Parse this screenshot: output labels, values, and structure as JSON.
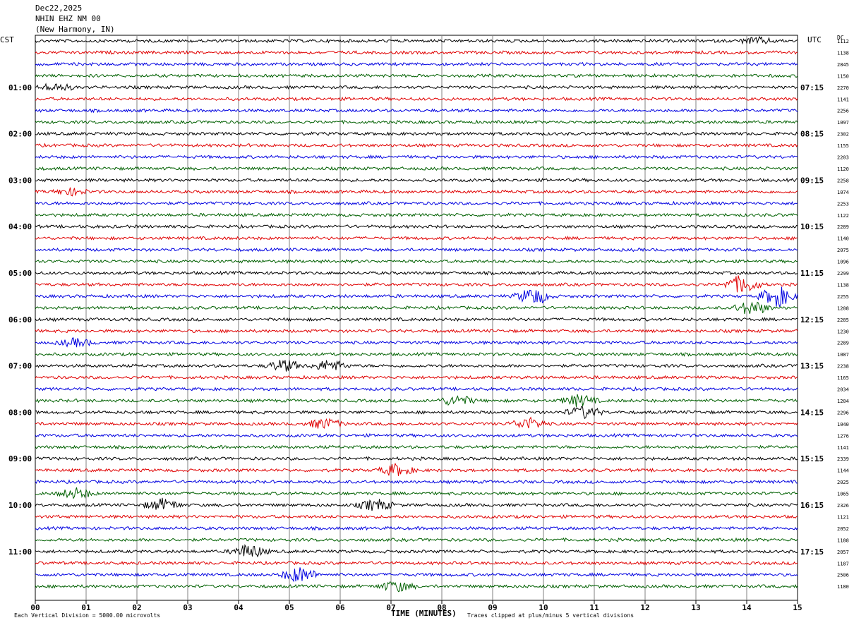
{
  "header": {
    "date": "Dec22,2025",
    "station": "NHIN EHZ NM 00",
    "location": "(New Harmony, IN)"
  },
  "left_zone": "CST",
  "right_zone": "UTC",
  "dc_header": "DC",
  "x_axis_title": "TIME (MINUTES)",
  "footer_left": "Each Vertical Division = 5000.00 microvolts",
  "footer_right": "Traces clipped at plus/minus 5 vertical divisions",
  "colors": {
    "trace_cycle": [
      "#000000",
      "#e00000",
      "#0000e0",
      "#006000"
    ],
    "grid": "#808080"
  },
  "chart_data": {
    "type": "line",
    "title": "NHIN EHZ NM 00 (New Harmony, IN)",
    "xlabel": "TIME (MINUTES)",
    "xlim": [
      0,
      15
    ],
    "x_ticks": [
      "00",
      "01",
      "02",
      "03",
      "04",
      "05",
      "06",
      "07",
      "08",
      "09",
      "10",
      "11",
      "12",
      "13",
      "14",
      "15"
    ],
    "left_hour_labels": [
      "01:00",
      "02:00",
      "03:00",
      "04:00",
      "05:00",
      "06:00",
      "07:00",
      "08:00",
      "09:00",
      "10:00",
      "11:00"
    ],
    "right_hour_labels": [
      "07:15",
      "08:15",
      "09:15",
      "10:15",
      "11:15",
      "12:15",
      "13:15",
      "14:15",
      "15:15",
      "16:15",
      "17:15"
    ],
    "trace_count": 48,
    "minutes_per_trace": 15,
    "dc_offsets": [
      "1112",
      "1138",
      "2845",
      "1150",
      "2270",
      "1141",
      "2256",
      "1097",
      "2302",
      "1155",
      "2203",
      "1120",
      "2258",
      "1074",
      "2253",
      "1122",
      "2289",
      "1140",
      "2075",
      "1096",
      "2299",
      "1138",
      "2255",
      "1208",
      "2285",
      "1230",
      "2289",
      "1087",
      "2238",
      "1165",
      "2034",
      "1204",
      "2296",
      "1040",
      "1276",
      "1141",
      "2339",
      "1144",
      "2025",
      "1065",
      "2326",
      "1121",
      "2052",
      "1188",
      "2057",
      "1187",
      "2506",
      "1180"
    ],
    "events": [
      {
        "trace": 0,
        "minute": 14.2,
        "amp": 0.5
      },
      {
        "trace": 4,
        "minute": 0.4,
        "amp": 0.6
      },
      {
        "trace": 13,
        "minute": 0.7,
        "amp": 0.5
      },
      {
        "trace": 21,
        "minute": 13.9,
        "amp": 1.4
      },
      {
        "trace": 22,
        "minute": 9.8,
        "amp": 1.3
      },
      {
        "trace": 22,
        "minute": 14.6,
        "amp": 1.6
      },
      {
        "trace": 23,
        "minute": 14.1,
        "amp": 1.1
      },
      {
        "trace": 26,
        "minute": 0.8,
        "amp": 0.6
      },
      {
        "trace": 28,
        "minute": 4.9,
        "amp": 0.9
      },
      {
        "trace": 28,
        "minute": 5.8,
        "amp": 0.9
      },
      {
        "trace": 31,
        "minute": 8.3,
        "amp": 0.8
      },
      {
        "trace": 31,
        "minute": 10.7,
        "amp": 0.9
      },
      {
        "trace": 32,
        "minute": 10.8,
        "amp": 0.9
      },
      {
        "trace": 33,
        "minute": 5.7,
        "amp": 0.8
      },
      {
        "trace": 33,
        "minute": 9.7,
        "amp": 0.9
      },
      {
        "trace": 37,
        "minute": 7.1,
        "amp": 0.9
      },
      {
        "trace": 39,
        "minute": 0.8,
        "amp": 0.8
      },
      {
        "trace": 40,
        "minute": 2.5,
        "amp": 0.9
      },
      {
        "trace": 40,
        "minute": 6.7,
        "amp": 0.9
      },
      {
        "trace": 44,
        "minute": 4.2,
        "amp": 1.1
      },
      {
        "trace": 46,
        "minute": 5.2,
        "amp": 1.2
      },
      {
        "trace": 47,
        "minute": 7.1,
        "amp": 0.8
      }
    ]
  }
}
